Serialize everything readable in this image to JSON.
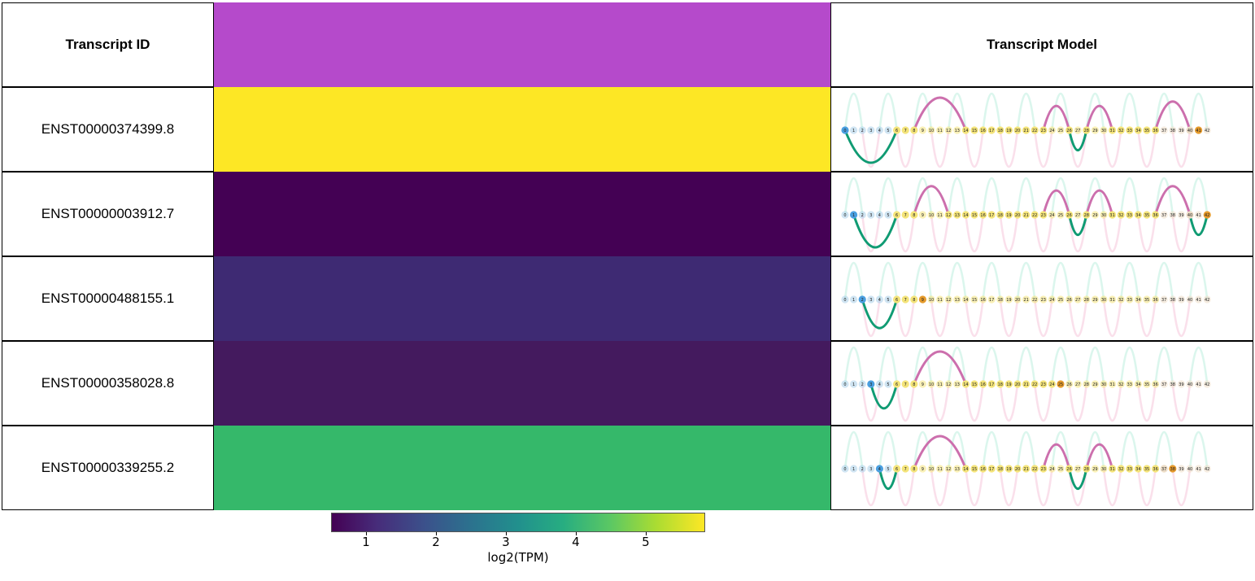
{
  "headers": {
    "id": "Transcript ID",
    "model": "Transcript Model"
  },
  "colors": {
    "top_band": "#b54acb",
    "pos_arc": "#109b73",
    "neg_arc": "#cc6fad",
    "node_a": "#a8cde8",
    "node_b": "#f4e47a",
    "node_c": "#ecdcc6",
    "start_node": "#4a9fe0",
    "end_node": "#e59a2b"
  },
  "chart_data": {
    "type": "heatmap",
    "colormap": "viridis",
    "rows": [
      {
        "id": "ENST00000374399.8",
        "value": 5.9,
        "color": "#fde725",
        "path": [
          0,
          6,
          7,
          8,
          14,
          15,
          16,
          17,
          18,
          19,
          20,
          21,
          22,
          23,
          26,
          28,
          31,
          32,
          33,
          34,
          35,
          36,
          40,
          41
        ]
      },
      {
        "id": "ENST00000003912.7",
        "value": 0.5,
        "color": "#440154",
        "path": [
          1,
          6,
          7,
          8,
          12,
          13,
          14,
          15,
          16,
          17,
          18,
          19,
          20,
          21,
          22,
          23,
          26,
          28,
          31,
          32,
          33,
          34,
          35,
          36,
          40,
          42
        ]
      },
      {
        "id": "ENST00000488155.1",
        "value": 1.5,
        "color": "#3e2a73",
        "path": [
          2,
          6,
          7,
          8,
          9
        ]
      },
      {
        "id": "ENST00000358028.8",
        "value": 1.0,
        "color": "#441a5e",
        "path": [
          3,
          6,
          7,
          8,
          14,
          15,
          16,
          17,
          18,
          19,
          20,
          21,
          22,
          23,
          24,
          25
        ]
      },
      {
        "id": "ENST00000339255.2",
        "value": 4.0,
        "color": "#35b86a",
        "path": [
          4,
          6,
          7,
          8,
          14,
          15,
          16,
          17,
          18,
          19,
          20,
          21,
          22,
          23,
          26,
          28,
          31,
          32,
          33,
          34,
          35,
          36,
          37,
          38
        ]
      }
    ],
    "node_labels": [
      "0",
      "1",
      "2",
      "3",
      "4",
      "5",
      "6",
      "7",
      "8",
      "9",
      "10",
      "11",
      "12",
      "13",
      "14",
      "15",
      "16",
      "17",
      "18",
      "19",
      "20",
      "21",
      "22",
      "23",
      "24",
      "25",
      "26",
      "27",
      "28",
      "29",
      "30",
      "31",
      "32",
      "33",
      "34",
      "35",
      "36",
      "37",
      "38",
      "39",
      "40",
      "41",
      "42"
    ],
    "colorbar": {
      "label": "log2(TPM)",
      "ticks": [
        "1",
        "2",
        "3",
        "4",
        "5"
      ],
      "range": [
        0.5,
        5.85
      ]
    }
  }
}
